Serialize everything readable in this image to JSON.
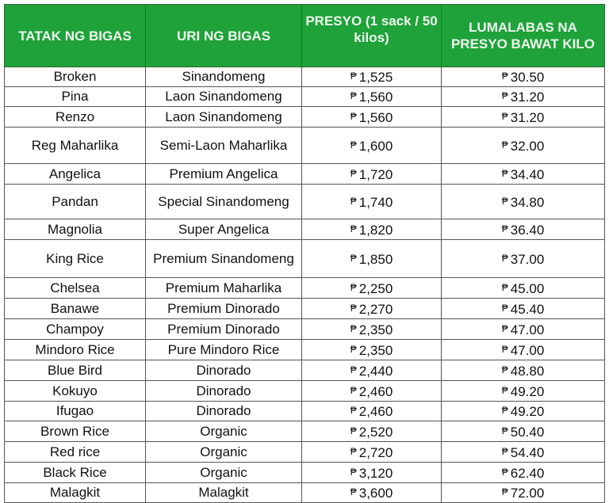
{
  "currency_symbol": "₱",
  "colors": {
    "header_bg": "#1fa23a",
    "header_text": "#eef8ee"
  },
  "headers": [
    "TATAK NG BIGAS",
    "URI NG BIGAS",
    "PRESYO (1 sack / 50 kilos)",
    "LUMALABAS NA PRESYO BAWAT KILO"
  ],
  "rows": [
    {
      "brand": "Broken",
      "type": "Sinandomeng",
      "sack": "1,525",
      "kilo": "30.50"
    },
    {
      "brand": "Pina",
      "type": "Laon Sinandomeng",
      "sack": "1,560",
      "kilo": "31.20"
    },
    {
      "brand": "Renzo",
      "type": "Laon Sinandomeng",
      "sack": "1,560",
      "kilo": "31.20"
    },
    {
      "brand": "Reg Maharlika",
      "type": "Semi-Laon Maharlika",
      "sack": "1,600",
      "kilo": "32.00"
    },
    {
      "brand": "Angelica",
      "type": "Premium Angelica",
      "sack": "1,720",
      "kilo": "34.40"
    },
    {
      "brand": "Pandan",
      "type": "Special Sinandomeng",
      "sack": "1,740",
      "kilo": "34.80"
    },
    {
      "brand": "Magnolia",
      "type": "Super Angelica",
      "sack": "1,820",
      "kilo": "36.40"
    },
    {
      "brand": "King Rice",
      "type": "Premium Sinandomeng",
      "sack": "1,850",
      "kilo": "37.00"
    },
    {
      "brand": "Chelsea",
      "type": "Premium Maharlika",
      "sack": "2,250",
      "kilo": "45.00"
    },
    {
      "brand": "Banawe",
      "type": "Premium Dinorado",
      "sack": "2,270",
      "kilo": "45.40"
    },
    {
      "brand": "Champoy",
      "type": "Premium Dinorado",
      "sack": "2,350",
      "kilo": "47.00"
    },
    {
      "brand": "Mindoro Rice",
      "type": "Pure Mindoro Rice",
      "sack": "2,350",
      "kilo": "47.00"
    },
    {
      "brand": "Blue Bird",
      "type": "Dinorado",
      "sack": "2,440",
      "kilo": "48.80"
    },
    {
      "brand": "Kokuyo",
      "type": "Dinorado",
      "sack": "2,460",
      "kilo": "49.20"
    },
    {
      "brand": "Ifugao",
      "type": "Dinorado",
      "sack": "2,460",
      "kilo": "49.20"
    },
    {
      "brand": "Brown Rice",
      "type": "Organic",
      "sack": "2,520",
      "kilo": "50.40"
    },
    {
      "brand": "Red rice",
      "type": "Organic",
      "sack": "2,720",
      "kilo": "54.40"
    },
    {
      "brand": "Black Rice",
      "type": "Organic",
      "sack": "3,120",
      "kilo": "62.40"
    },
    {
      "brand": "Malagkit",
      "type": "Malagkit",
      "sack": "3,600",
      "kilo": "72.00"
    }
  ]
}
